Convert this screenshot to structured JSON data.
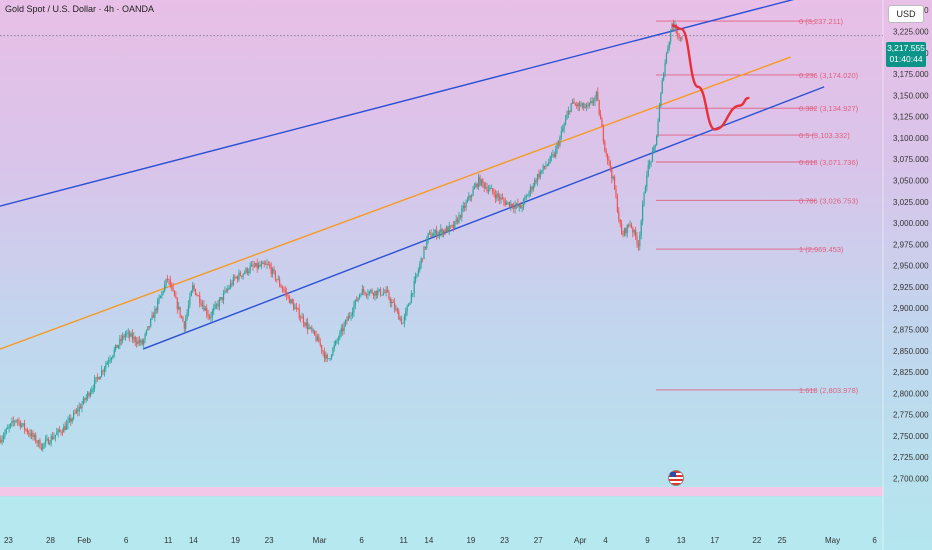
{
  "header": {
    "title": "Gold Spot / U.S. Dollar · 4h · OANDA",
    "currency": "USD"
  },
  "price_badge": {
    "price": "3,217.555",
    "countdown": "01:40:44"
  },
  "colors": {
    "channel": "#2b50d6",
    "midline": "#f59a23",
    "fib": "#e0607e",
    "projection": "#e8303a",
    "up_candle": "#26a69a",
    "down_candle": "#ef5350",
    "badge": "#0d9488"
  },
  "chart_data": {
    "type": "candlestick",
    "title": "Gold Spot / U.S. Dollar · 4h · OANDA",
    "y_axis": {
      "range": [
        2690,
        3262
      ],
      "ticks": [
        2700,
        2725,
        2750,
        2775,
        2800,
        2825,
        2850,
        2875,
        2900,
        2925,
        2950,
        2975,
        3000,
        3025,
        3050,
        3075,
        3100,
        3125,
        3150,
        3175,
        3200,
        3225,
        3250
      ],
      "tick_labels": [
        "2,700.000",
        "2,725.000",
        "2,750.000",
        "2,775.000",
        "2,800.000",
        "2,825.000",
        "2,850.000",
        "2,875.000",
        "2,900.000",
        "2,925.000",
        "2,950.000",
        "2,975.000",
        "3,000.000",
        "3,025.000",
        "3,050.000",
        "3,075.000",
        "3,100.000",
        "3,125.000",
        "3,150.000",
        "3,175.000",
        "3,200.000",
        "3,225.000",
        "3,250.000"
      ]
    },
    "x_axis": {
      "range": [
        "2025-01-22",
        "2025-05-07"
      ],
      "ticks": [
        "2025-01-23",
        "2025-01-28",
        "2025-02-01",
        "2025-02-06",
        "2025-02-11",
        "2025-02-14",
        "2025-02-19",
        "2025-02-23",
        "2025-03-01",
        "2025-03-06",
        "2025-03-11",
        "2025-03-14",
        "2025-03-19",
        "2025-03-23",
        "2025-03-27",
        "2025-04-01",
        "2025-04-04",
        "2025-04-09",
        "2025-04-13",
        "2025-04-17",
        "2025-04-22",
        "2025-04-25",
        "2025-05-01",
        "2025-05-06"
      ],
      "tick_labels": [
        "23",
        "28",
        "Feb",
        "6",
        "11",
        "14",
        "19",
        "23",
        "Mar",
        "6",
        "11",
        "14",
        "19",
        "23",
        "27",
        "Apr",
        "4",
        "9",
        "13",
        "17",
        "22",
        "25",
        "May",
        "6"
      ]
    },
    "price_path": [
      [
        "2025-01-22",
        2745
      ],
      [
        "2025-01-24",
        2770
      ],
      [
        "2025-01-27",
        2738
      ],
      [
        "2025-01-30",
        2762
      ],
      [
        "2025-02-01",
        2790
      ],
      [
        "2025-02-04",
        2840
      ],
      [
        "2025-02-06",
        2870
      ],
      [
        "2025-02-08",
        2858
      ],
      [
        "2025-02-11",
        2935
      ],
      [
        "2025-02-13",
        2880
      ],
      [
        "2025-02-14",
        2925
      ],
      [
        "2025-02-16",
        2890
      ],
      [
        "2025-02-19",
        2935
      ],
      [
        "2025-02-21",
        2948
      ],
      [
        "2025-02-23",
        2950
      ],
      [
        "2025-02-26",
        2902
      ],
      [
        "2025-03-01",
        2860
      ],
      [
        "2025-03-02",
        2838
      ],
      [
        "2025-03-06",
        2920
      ],
      [
        "2025-03-09",
        2918
      ],
      [
        "2025-03-11",
        2882
      ],
      [
        "2025-03-14",
        2985
      ],
      [
        "2025-03-17",
        2995
      ],
      [
        "2025-03-20",
        3050
      ],
      [
        "2025-03-23",
        3025
      ],
      [
        "2025-03-25",
        3018
      ],
      [
        "2025-03-27",
        3055
      ],
      [
        "2025-03-29",
        3080
      ],
      [
        "2025-03-31",
        3140
      ],
      [
        "2025-04-02",
        3135
      ],
      [
        "2025-04-03",
        3150
      ],
      [
        "2025-04-04",
        3090
      ],
      [
        "2025-04-05",
        3050
      ],
      [
        "2025-04-06",
        2985
      ],
      [
        "2025-04-07",
        3000
      ],
      [
        "2025-04-08",
        2975
      ],
      [
        "2025-04-09",
        3060
      ],
      [
        "2025-04-10",
        3090
      ],
      [
        "2025-04-11",
        3180
      ],
      [
        "2025-04-12",
        3235
      ],
      [
        "2025-04-13",
        3217.555
      ]
    ],
    "current_price": 3217.555,
    "fibonacci": {
      "anchor_from": "2025-04-10",
      "anchor_to": "2025-04-29",
      "levels": [
        {
          "label": "0 (3,237.211)",
          "ratio": 0,
          "price": 3237.211
        },
        {
          "label": "0.236 (3,174.020)",
          "ratio": 0.236,
          "price": 3174.02
        },
        {
          "label": "0.382 (3,134.927)",
          "ratio": 0.382,
          "price": 3134.927
        },
        {
          "label": "0.5 (3,103.332)",
          "ratio": 0.5,
          "price": 3103.332
        },
        {
          "label": "0.618 (3,071.736)",
          "ratio": 0.618,
          "price": 3071.736
        },
        {
          "label": "0.786 (3,026.753)",
          "ratio": 0.786,
          "price": 3026.753
        },
        {
          "label": "1 (2,969.453)",
          "ratio": 1,
          "price": 2969.453
        },
        {
          "label": "1.618 (2,803.978)",
          "ratio": 1.618,
          "price": 2803.978
        }
      ]
    },
    "trendlines": [
      {
        "id": "channel-upper",
        "color": "#2b50d6",
        "points": [
          [
            "2025-01-22",
            3020
          ],
          [
            "2025-04-30",
            3272
          ]
        ]
      },
      {
        "id": "channel-lower",
        "color": "#2b50d6",
        "points": [
          [
            "2025-02-08",
            2852
          ],
          [
            "2025-04-30",
            3160
          ]
        ]
      },
      {
        "id": "midline",
        "color": "#f59a23",
        "points": [
          [
            "2025-01-22",
            2852
          ],
          [
            "2025-04-26",
            3195
          ]
        ]
      }
    ],
    "projection": {
      "color": "#e8303a",
      "points": [
        [
          "2025-04-12",
          3232
        ],
        [
          "2025-04-13",
          3228
        ],
        [
          "2025-04-15",
          3160
        ],
        [
          "2025-04-17",
          3110
        ],
        [
          "2025-04-20",
          3138
        ],
        [
          "2025-04-21",
          3147
        ]
      ]
    },
    "dotted_line_price": 3220
  }
}
